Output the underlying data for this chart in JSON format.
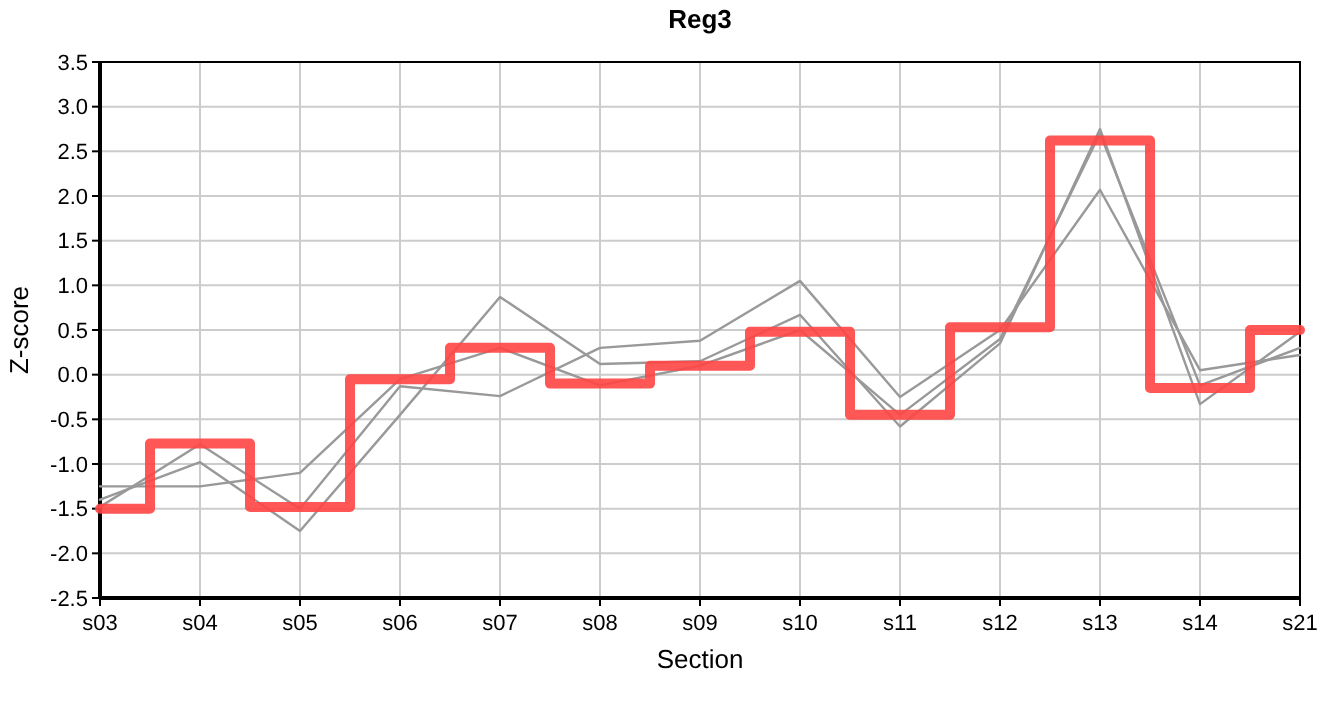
{
  "chart_data": {
    "type": "line",
    "title": "Reg3",
    "xlabel": "Section",
    "ylabel": "Z-score",
    "categories": [
      "s03",
      "s04",
      "s05",
      "s06",
      "s07",
      "s08",
      "s09",
      "s10",
      "s11",
      "s12",
      "s13",
      "s14",
      "s21"
    ],
    "series": [
      {
        "color": "#999999",
        "values": [
          -1.4,
          -0.98,
          -1.75,
          -0.45,
          0.87,
          0.12,
          0.15,
          0.67,
          -0.58,
          0.35,
          2.75,
          -0.33,
          0.48
        ]
      },
      {
        "color": "#999999",
        "values": [
          -1.48,
          -0.78,
          -1.5,
          -0.13,
          -0.24,
          0.3,
          0.38,
          1.05,
          -0.25,
          0.5,
          2.07,
          0.05,
          0.22
        ]
      },
      {
        "color": "#999999",
        "values": [
          -1.25,
          -1.25,
          -1.1,
          -0.05,
          0.3,
          -0.12,
          0.1,
          0.5,
          -0.45,
          0.4,
          2.7,
          -0.12,
          0.3
        ]
      },
      {
        "type": "step",
        "color": "#ff4444",
        "values": [
          -1.5,
          -0.77,
          -1.48,
          -0.05,
          0.3,
          -0.1,
          0.1,
          0.48,
          -0.45,
          0.53,
          2.62,
          -0.15,
          0.5
        ]
      }
    ],
    "ylim": [
      -2.5,
      3.5
    ],
    "yticks": [
      -2.5,
      {
        "value": -2,
        "label": "-2.0"
      },
      -1.5,
      {
        "value": -1,
        "label": "-1.0"
      },
      -0.5,
      {
        "value": 0,
        "label": "0.0"
      },
      0.5,
      {
        "value": 1,
        "label": "1.0"
      },
      1.5,
      {
        "value": 2,
        "label": "2.0"
      },
      2.5,
      {
        "value": 3,
        "label": "3.0"
      },
      3.5
    ],
    "grid": true,
    "marker": "none",
    "line_style": "solid"
  }
}
